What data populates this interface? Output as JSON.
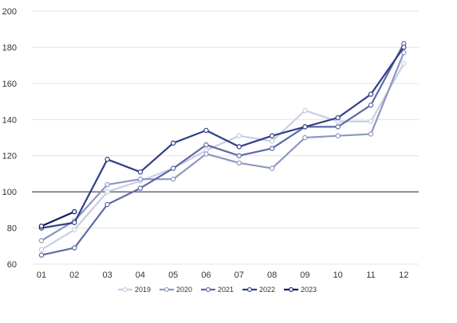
{
  "chart_data": {
    "type": "line",
    "title": "",
    "xlabel": "",
    "ylabel": "",
    "categories": [
      "01",
      "02",
      "03",
      "04",
      "05",
      "06",
      "07",
      "08",
      "09",
      "10",
      "11",
      "12"
    ],
    "ylim": [
      60,
      200
    ],
    "yticks": [
      60,
      80,
      100,
      120,
      140,
      160,
      180,
      200
    ],
    "grid": true,
    "reference_line": 100,
    "legend_position": "bottom",
    "series": [
      {
        "name": "2019",
        "color": "#c9cde6",
        "values": [
          68,
          79,
          100,
          106,
          113,
          123,
          131,
          128,
          145,
          139,
          139,
          171
        ]
      },
      {
        "name": "2020",
        "color": "#8e97c2",
        "values": [
          73,
          84,
          104,
          107,
          107,
          121,
          116,
          113,
          130,
          131,
          132,
          177
        ]
      },
      {
        "name": "2021",
        "color": "#5e6aa6",
        "values": [
          65,
          69,
          93,
          102,
          113,
          126,
          120,
          124,
          136,
          136,
          148,
          182
        ]
      },
      {
        "name": "2022",
        "color": "#2f3f87",
        "values": [
          80,
          83,
          118,
          111,
          127,
          134,
          125,
          131,
          136,
          141,
          154,
          180
        ]
      },
      {
        "name": "2023",
        "color": "#101a5e",
        "values": [
          81,
          89,
          null,
          null,
          null,
          null,
          null,
          null,
          null,
          null,
          null,
          null
        ]
      }
    ]
  }
}
